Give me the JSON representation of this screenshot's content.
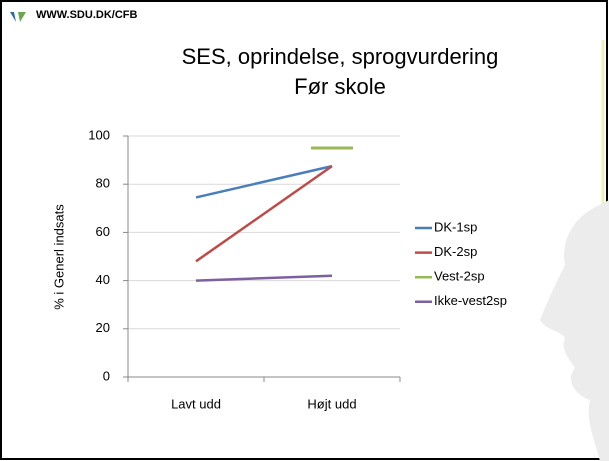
{
  "header": {
    "site": "WWW.SDU.DK/CFB"
  },
  "chart_data": {
    "type": "line",
    "title": "SES, oprindelse, sprogvurdering",
    "subtitle": "Før skole",
    "y_label": "% i Generl indsats",
    "categories": [
      "Lavt udd",
      "Højt udd"
    ],
    "series": [
      {
        "name": "DK-1sp",
        "color": "#4a7ebb",
        "values": [
          74.5,
          87.5
        ]
      },
      {
        "name": "DK-2sp",
        "color": "#be4b48",
        "values": [
          48,
          87.5
        ]
      },
      {
        "name": "Vest-2sp",
        "color": "#98b954",
        "values": [
          null,
          95
        ]
      },
      {
        "name": "Ikke-vest2sp",
        "color": "#7d60a0",
        "values": [
          40,
          42
        ]
      }
    ],
    "ylim": [
      0,
      100
    ],
    "yticks": [
      0,
      20,
      40,
      60,
      80,
      100
    ],
    "grid": true,
    "legend": "right"
  }
}
